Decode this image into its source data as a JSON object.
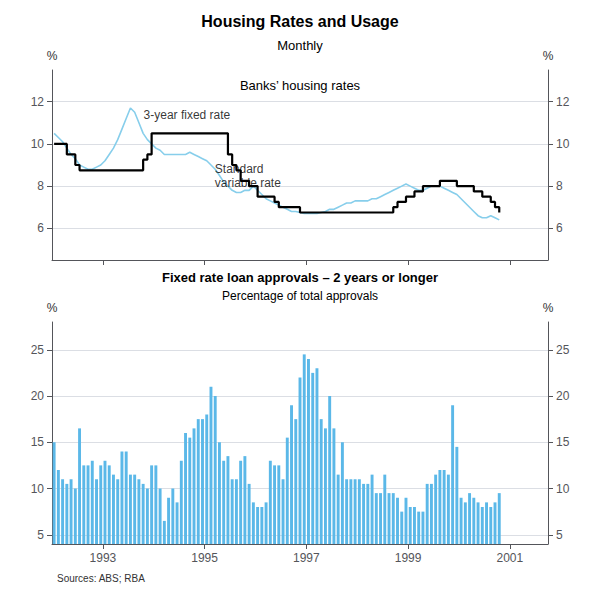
{
  "title": "Housing Rates and Usage",
  "subtitle": "Monthly",
  "source": "Sources: ABS; RBA",
  "chart_data": [
    {
      "type": "line",
      "title": "Banks’ housing rates",
      "ylabel": "%",
      "xlim": [
        1992.0,
        2001.75
      ],
      "xticks": [
        1993,
        1995,
        1997,
        1999,
        2001
      ],
      "ylim": [
        4.5,
        13.5
      ],
      "yticks": [
        6,
        8,
        10,
        12
      ],
      "grid": true,
      "tick_labels": "y",
      "x": [
        1992.0416666666667,
        1992.125,
        1992.2083333333333,
        1992.2916666666667,
        1992.375,
        1992.4583333333333,
        1992.5416666666667,
        1992.625,
        1992.7083333333333,
        1992.7916666666667,
        1992.875,
        1992.9583333333333,
        1993.0416666666667,
        1993.125,
        1993.2083333333333,
        1993.2916666666667,
        1993.375,
        1993.4583333333333,
        1993.5416666666667,
        1993.625,
        1993.7083333333333,
        1993.7916666666667,
        1993.875,
        1993.9583333333333,
        1994.0416666666667,
        1994.125,
        1994.2083333333333,
        1994.2916666666667,
        1994.375,
        1994.4583333333333,
        1994.5416666666667,
        1994.625,
        1994.7083333333333,
        1994.7916666666667,
        1994.875,
        1994.9583333333333,
        1995.0416666666667,
        1995.125,
        1995.2083333333333,
        1995.2916666666667,
        1995.375,
        1995.4583333333333,
        1995.5416666666667,
        1995.625,
        1995.7083333333333,
        1995.7916666666667,
        1995.875,
        1995.9583333333333,
        1996.0416666666667,
        1996.125,
        1996.2083333333333,
        1996.2916666666667,
        1996.375,
        1996.4583333333333,
        1996.5416666666667,
        1996.625,
        1996.7083333333333,
        1996.7916666666667,
        1996.875,
        1996.9583333333333,
        1997.0416666666667,
        1997.125,
        1997.2083333333333,
        1997.2916666666667,
        1997.375,
        1997.4583333333333,
        1997.5416666666667,
        1997.625,
        1997.7083333333333,
        1997.7916666666667,
        1997.875,
        1997.9583333333333,
        1998.0416666666667,
        1998.125,
        1998.2083333333333,
        1998.2916666666667,
        1998.375,
        1998.4583333333333,
        1998.5416666666667,
        1998.625,
        1998.7083333333333,
        1998.7916666666667,
        1998.875,
        1998.9583333333333,
        1999.0416666666667,
        1999.125,
        1999.2083333333333,
        1999.2916666666667,
        1999.375,
        1999.4583333333333,
        1999.5416666666667,
        1999.625,
        1999.7083333333333,
        1999.7916666666667,
        1999.875,
        1999.9583333333333,
        2000.0416666666667,
        2000.125,
        2000.2083333333333,
        2000.2916666666667,
        2000.375,
        2000.4583333333333,
        2000.5416666666667,
        2000.625,
        2000.7083333333333,
        2000.7916666666667
      ],
      "series": [
        {
          "type": "line",
          "color": "#87ceeb",
          "values": [
            10.5,
            10.3,
            10.1,
            9.8,
            9.5,
            9.3,
            9.0,
            8.9,
            8.8,
            8.8,
            8.9,
            9.0,
            9.2,
            9.5,
            9.8,
            10.2,
            10.7,
            11.2,
            11.7,
            11.5,
            11.0,
            10.5,
            10.2,
            10.0,
            9.8,
            9.7,
            9.5,
            9.5,
            9.5,
            9.5,
            9.5,
            9.5,
            9.6,
            9.5,
            9.4,
            9.3,
            9.2,
            9.0,
            8.8,
            8.5,
            8.2,
            8.0,
            7.8,
            7.7,
            7.7,
            7.8,
            7.8,
            8.0,
            7.8,
            7.6,
            7.4,
            7.3,
            7.2,
            7.1,
            7.0,
            6.9,
            6.8,
            6.8,
            6.75,
            6.7,
            6.7,
            6.7,
            6.7,
            6.75,
            6.8,
            6.9,
            6.9,
            7.0,
            7.1,
            7.2,
            7.2,
            7.3,
            7.3,
            7.3,
            7.3,
            7.4,
            7.4,
            7.5,
            7.6,
            7.7,
            7.8,
            7.9,
            8.0,
            8.1,
            8.0,
            7.9,
            7.8,
            7.8,
            7.9,
            8.0,
            8.0,
            8.0,
            7.9,
            7.8,
            7.7,
            7.6,
            7.4,
            7.2,
            7.0,
            6.8,
            6.6,
            6.5,
            6.5,
            6.6,
            6.5,
            6.4
          ]
        },
        {
          "type": "step",
          "color": "#000000",
          "values": [
            10.0,
            10.0,
            10.0,
            9.5,
            9.5,
            9.0,
            8.75,
            8.75,
            8.75,
            8.75,
            8.75,
            8.75,
            8.75,
            8.75,
            8.75,
            8.75,
            8.75,
            8.75,
            8.75,
            8.75,
            8.75,
            9.25,
            9.5,
            10.5,
            10.5,
            10.5,
            10.5,
            10.5,
            10.5,
            10.5,
            10.5,
            10.5,
            10.5,
            10.5,
            10.5,
            10.5,
            10.5,
            10.5,
            10.5,
            10.5,
            10.5,
            9.5,
            9.0,
            8.75,
            8.25,
            8.25,
            8.0,
            8.0,
            7.5,
            7.5,
            7.5,
            7.5,
            7.25,
            7.0,
            7.0,
            7.0,
            7.0,
            7.0,
            6.75,
            6.75,
            6.75,
            6.75,
            6.75,
            6.75,
            6.75,
            6.75,
            6.75,
            6.75,
            6.75,
            6.75,
            6.75,
            6.75,
            6.75,
            6.75,
            6.75,
            6.75,
            6.75,
            6.75,
            6.75,
            6.75,
            7.0,
            7.25,
            7.25,
            7.5,
            7.5,
            7.75,
            7.75,
            8.0,
            8.0,
            8.0,
            8.0,
            8.25,
            8.25,
            8.25,
            8.25,
            8.0,
            8.0,
            8.0,
            8.0,
            7.75,
            7.75,
            7.5,
            7.5,
            7.25,
            7.0,
            6.75
          ]
        }
      ],
      "annotations": [
        {
          "text": "3-year fixed rate",
          "x": 1993.8,
          "y": 11.35
        },
        {
          "text": "Standard\nvariable rate",
          "x": 1995.2,
          "y": 8.5
        }
      ]
    },
    {
      "type": "bar",
      "title": "Fixed rate loan approvals – 2 years or longer",
      "subtitle": "Percentage of total approvals",
      "ylabel": "%",
      "xlim": [
        1992.0,
        2001.75
      ],
      "xticks": [
        1993,
        1995,
        1997,
        1999,
        2001
      ],
      "ylim": [
        4,
        28
      ],
      "yticks": [
        5,
        10,
        15,
        20,
        25
      ],
      "grid": true,
      "color": "#5bb8e8",
      "x": [
        1992.0416666666667,
        1992.125,
        1992.2083333333333,
        1992.2916666666667,
        1992.375,
        1992.4583333333333,
        1992.5416666666667,
        1992.625,
        1992.7083333333333,
        1992.7916666666667,
        1992.875,
        1992.9583333333333,
        1993.0416666666667,
        1993.125,
        1993.2083333333333,
        1993.2916666666667,
        1993.375,
        1993.4583333333333,
        1993.5416666666667,
        1993.625,
        1993.7083333333333,
        1993.7916666666667,
        1993.875,
        1993.9583333333333,
        1994.0416666666667,
        1994.125,
        1994.2083333333333,
        1994.2916666666667,
        1994.375,
        1994.4583333333333,
        1994.5416666666667,
        1994.625,
        1994.7083333333333,
        1994.7916666666667,
        1994.875,
        1994.9583333333333,
        1995.0416666666667,
        1995.125,
        1995.2083333333333,
        1995.2916666666667,
        1995.375,
        1995.4583333333333,
        1995.5416666666667,
        1995.625,
        1995.7083333333333,
        1995.7916666666667,
        1995.875,
        1995.9583333333333,
        1996.0416666666667,
        1996.125,
        1996.2083333333333,
        1996.2916666666667,
        1996.375,
        1996.4583333333333,
        1996.5416666666667,
        1996.625,
        1996.7083333333333,
        1996.7916666666667,
        1996.875,
        1996.9583333333333,
        1997.0416666666667,
        1997.125,
        1997.2083333333333,
        1997.2916666666667,
        1997.375,
        1997.4583333333333,
        1997.5416666666667,
        1997.625,
        1997.7083333333333,
        1997.7916666666667,
        1997.875,
        1997.9583333333333,
        1998.0416666666667,
        1998.125,
        1998.2083333333333,
        1998.2916666666667,
        1998.375,
        1998.4583333333333,
        1998.5416666666667,
        1998.625,
        1998.7083333333333,
        1998.7916666666667,
        1998.875,
        1998.9583333333333,
        1999.0416666666667,
        1999.125,
        1999.2083333333333,
        1999.2916666666667,
        1999.375,
        1999.4583333333333,
        1999.5416666666667,
        1999.625,
        1999.7083333333333,
        1999.7916666666667,
        1999.875,
        1999.9583333333333,
        2000.0416666666667,
        2000.125,
        2000.2083333333333,
        2000.2916666666667,
        2000.375,
        2000.4583333333333,
        2000.5416666666667,
        2000.625,
        2000.7083333333333,
        2000.7916666666667
      ],
      "values": [
        15.0,
        12.0,
        11.0,
        10.5,
        11.0,
        10.0,
        16.5,
        12.5,
        12.5,
        13.0,
        11.0,
        12.5,
        13.0,
        12.5,
        11.5,
        11.0,
        14.0,
        14.0,
        11.5,
        11.5,
        11.0,
        10.5,
        10.0,
        12.5,
        12.5,
        10.0,
        6.5,
        9.0,
        10.0,
        8.5,
        13.0,
        16.0,
        15.5,
        16.5,
        17.5,
        17.5,
        18.0,
        21.0,
        20.0,
        15.0,
        13.0,
        13.5,
        11.0,
        11.0,
        13.0,
        13.5,
        10.5,
        8.5,
        8.0,
        8.0,
        8.5,
        13.0,
        12.5,
        12.5,
        11.0,
        15.5,
        19.0,
        17.5,
        22.0,
        24.5,
        24.0,
        22.5,
        23.0,
        17.5,
        16.5,
        20.0,
        16.5,
        11.5,
        15.0,
        11.0,
        11.0,
        11.0,
        11.0,
        10.5,
        10.5,
        11.5,
        9.5,
        9.5,
        11.5,
        9.5,
        9.5,
        9.0,
        7.5,
        9.0,
        8.0,
        8.0,
        7.5,
        7.5,
        10.5,
        10.5,
        11.5,
        12.0,
        12.0,
        11.5,
        19.0,
        14.5,
        9.0,
        8.5,
        9.5,
        9.0,
        8.5,
        8.0,
        8.5,
        8.0,
        8.5,
        9.5
      ]
    }
  ]
}
